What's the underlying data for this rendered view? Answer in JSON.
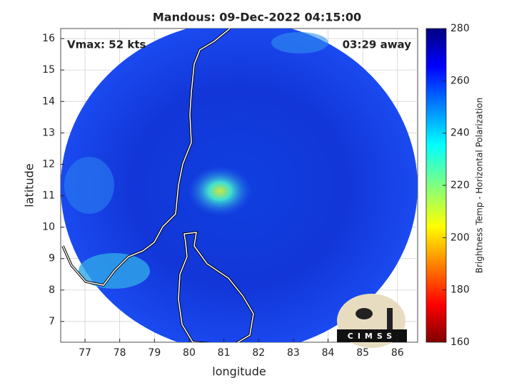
{
  "map": {
    "title": "Mandous: 09-Dec-2022 04:15:00",
    "annotations": [
      "Vmax: 52 kts",
      "03:29 away"
    ],
    "xlabel": "longitude",
    "ylabel": "latitude",
    "xlim": [
      76.3,
      86.58
    ],
    "ylim": [
      6.34,
      16.32
    ],
    "xticks": [
      77,
      78,
      79,
      80,
      81,
      82,
      83,
      84,
      85,
      86
    ],
    "yticks": [
      7,
      8,
      9,
      10,
      11,
      12,
      13,
      14,
      15,
      16
    ],
    "grid": true,
    "colorbar": {
      "label": "Brightness Temp - Horizontal Polarization",
      "lim": [
        160,
        280
      ],
      "ticks": [
        160,
        180,
        200,
        220,
        240,
        260,
        280
      ]
    },
    "logo": "CIMSS"
  }
}
